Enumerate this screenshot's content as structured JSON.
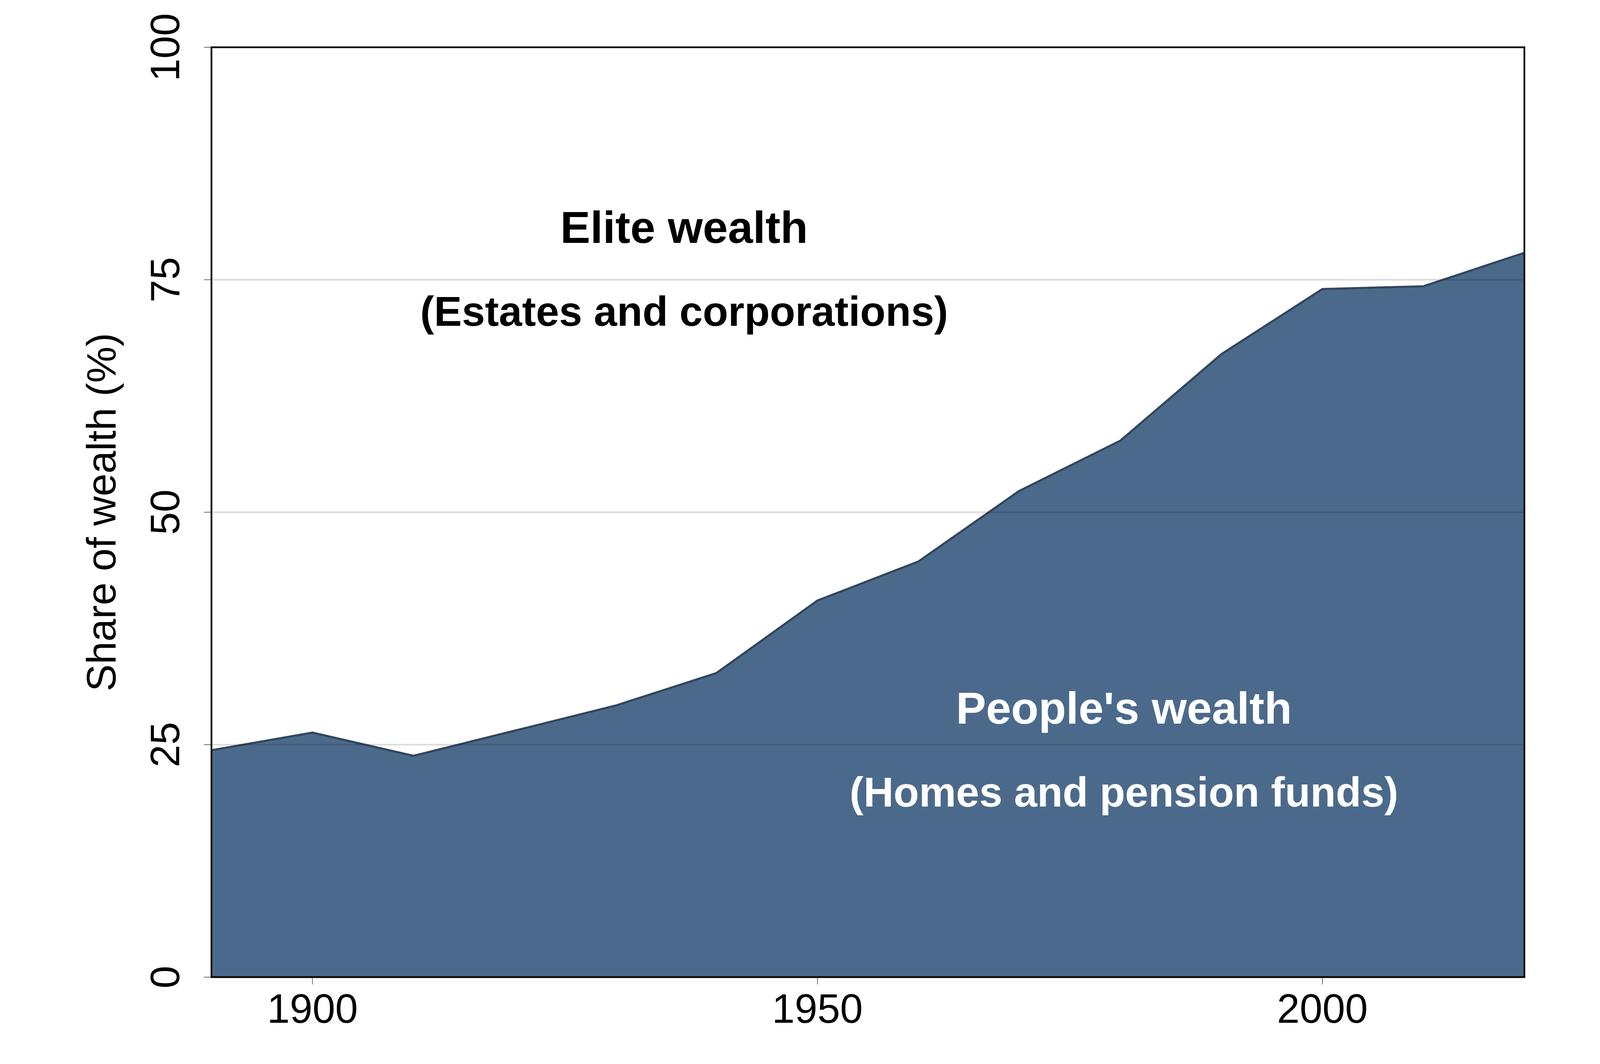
{
  "chart_data": {
    "type": "area",
    "stacked": true,
    "x": [
      1890,
      1900,
      1910,
      1920,
      1930,
      1940,
      1950,
      1960,
      1970,
      1980,
      1990,
      2000,
      2010,
      2020
    ],
    "series": [
      {
        "name": "People's wealth",
        "annotation": "(Homes and pension funds)",
        "color": "#4b6a8b",
        "values": [
          24.4,
          26.3,
          23.8,
          26.5,
          29.2,
          32.7,
          40.5,
          44.7,
          52.3,
          57.7,
          67.0,
          74.0,
          74.3,
          77.9
        ]
      },
      {
        "name": "Elite wealth",
        "annotation": "(Estates and corporations)",
        "color": "#ffffff",
        "values": [
          75.6,
          73.7,
          76.2,
          73.5,
          70.8,
          67.3,
          59.5,
          55.3,
          47.7,
          42.3,
          33.0,
          26.0,
          25.7,
          22.1
        ]
      }
    ],
    "ylabel": "Share of wealth (%)",
    "xlim": [
      1890,
      2020
    ],
    "ylim": [
      0,
      100
    ],
    "xticks": [
      1900,
      1950,
      2000
    ],
    "yticks": [
      0,
      25,
      50,
      75,
      100
    ],
    "grid": true
  }
}
